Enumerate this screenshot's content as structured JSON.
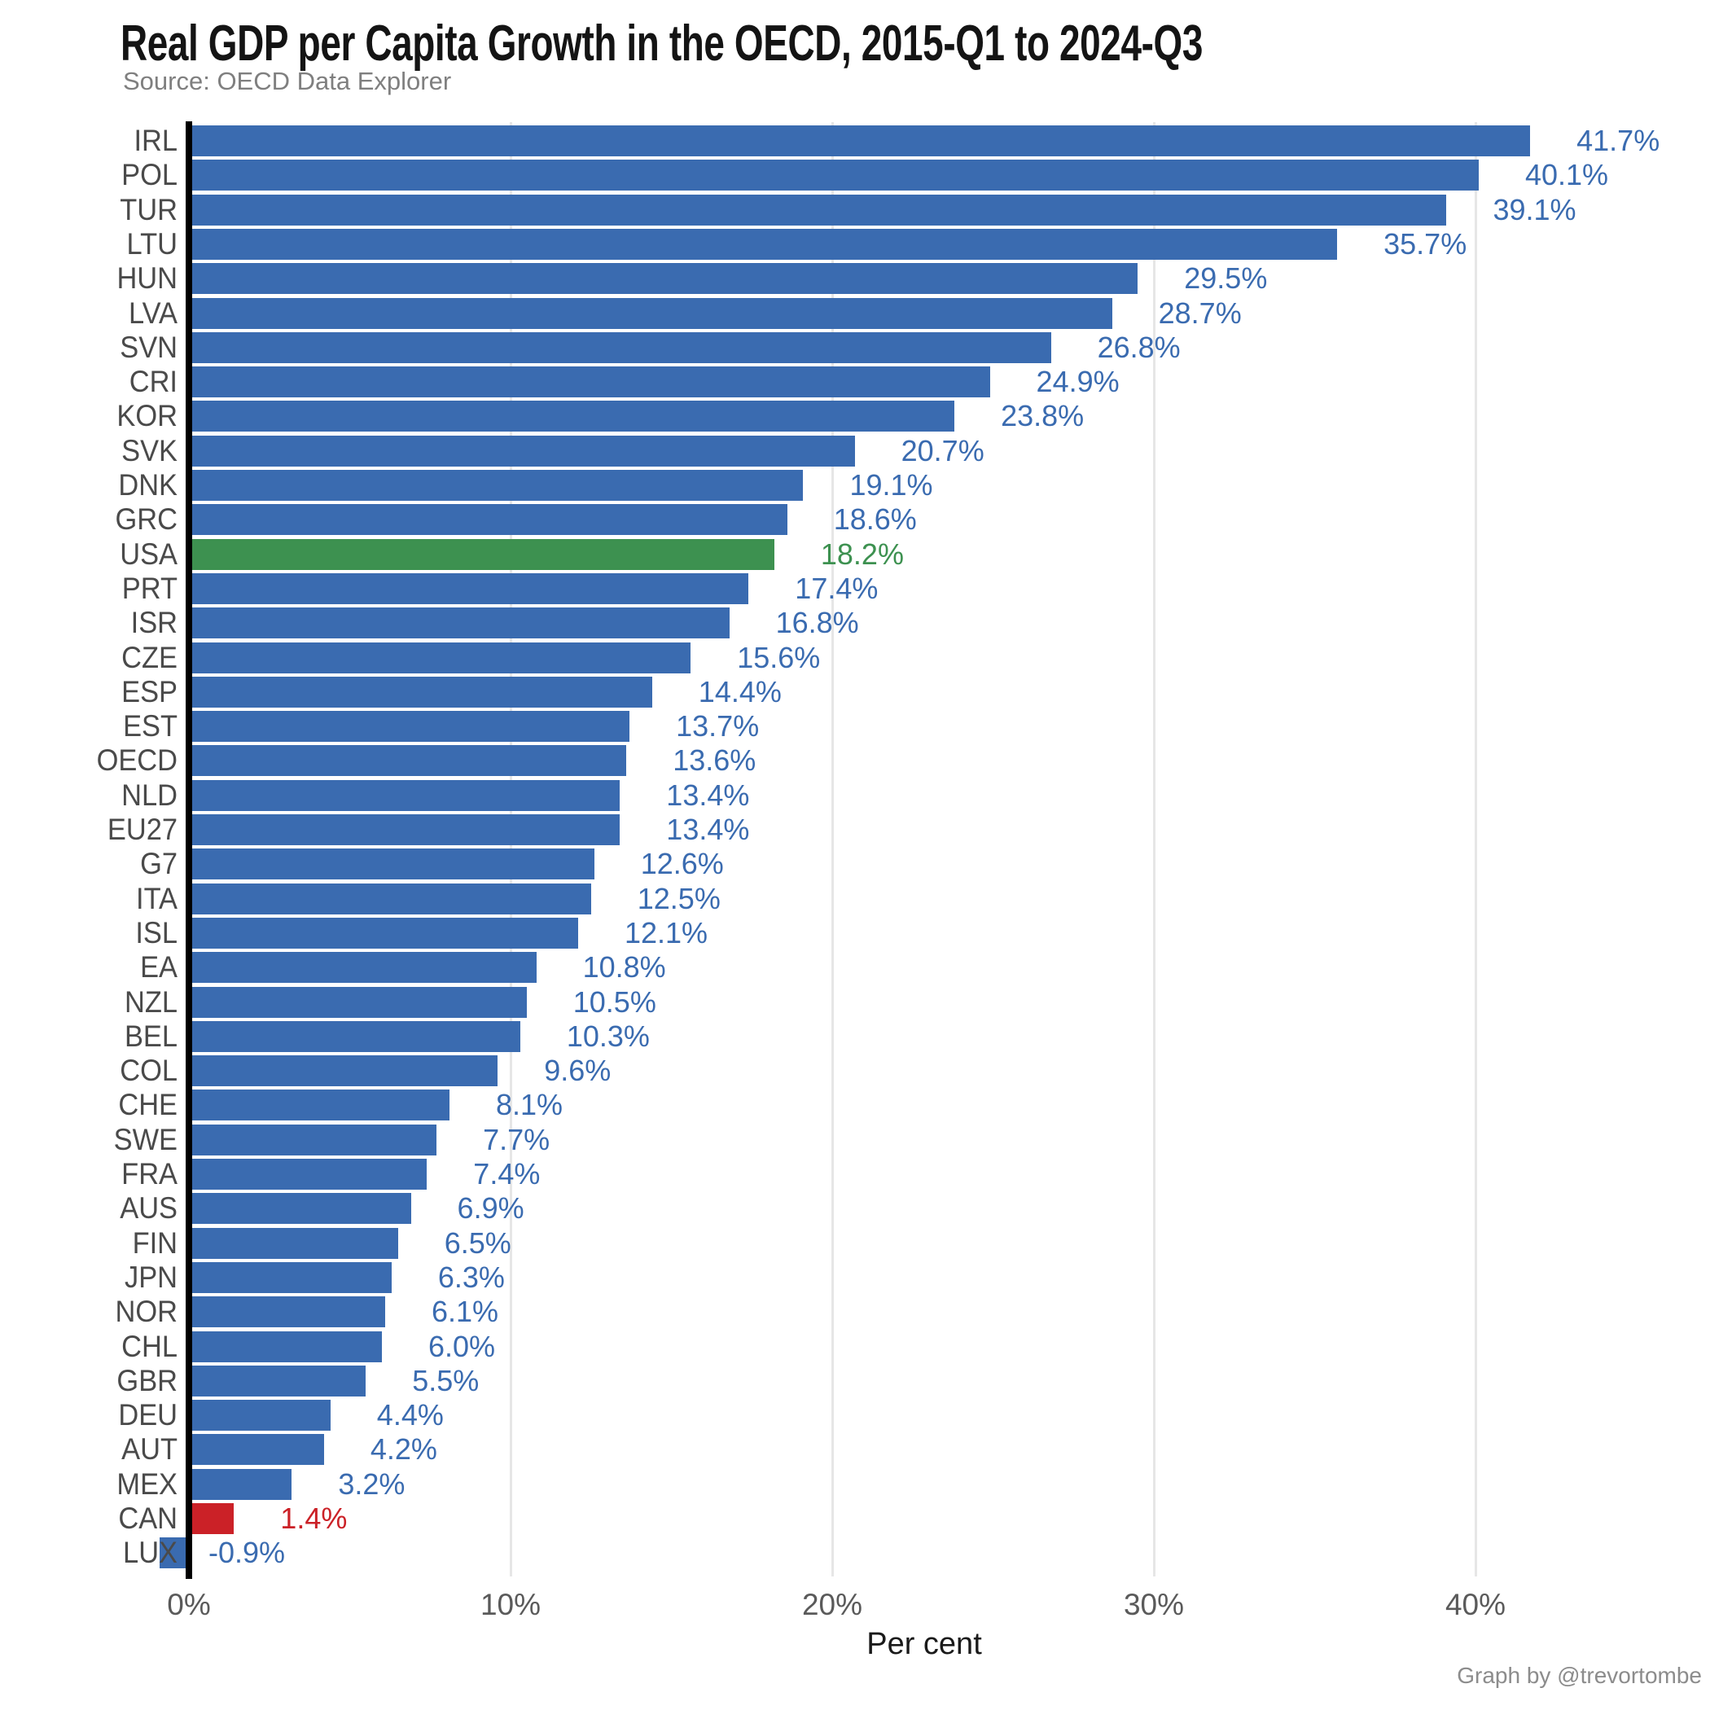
{
  "title": "Real GDP per Capita Growth in the OECD, 2015-Q1 to 2024-Q3",
  "subtitle": "Source: OECD Data Explorer",
  "footer": "Graph by @trevortombe",
  "colors": {
    "bar_default": "#3a6bb0",
    "bar_usa": "#3d9150",
    "bar_can": "#cb2127",
    "label_default": "#3a6bb0",
    "label_usa": "#3d9150",
    "label_can": "#cb2127",
    "axis_line": "#000000",
    "gridline": "#e6e6e6",
    "category_text": "#4a4a4a",
    "tick_text": "#5a5a5a"
  },
  "chart_data": {
    "type": "bar",
    "orientation": "horizontal",
    "title": "Real GDP per Capita Growth in the OECD, 2015-Q1 to 2024-Q3",
    "subtitle": "Source: OECD Data Explorer",
    "xlabel": "Per cent",
    "ylabel": "",
    "xlim": [
      -2,
      47
    ],
    "grid": "vertical-major",
    "x_ticks": [
      {
        "value": 0,
        "label": "0%"
      },
      {
        "value": 10,
        "label": "10%"
      },
      {
        "value": 20,
        "label": "20%"
      },
      {
        "value": 30,
        "label": "30%"
      },
      {
        "value": 40,
        "label": "40%"
      }
    ],
    "categories": [
      "IRL",
      "POL",
      "TUR",
      "LTU",
      "HUN",
      "LVA",
      "SVN",
      "CRI",
      "KOR",
      "SVK",
      "DNK",
      "GRC",
      "USA",
      "PRT",
      "ISR",
      "CZE",
      "ESP",
      "EST",
      "OECD",
      "NLD",
      "EU27",
      "G7",
      "ITA",
      "ISL",
      "EA",
      "NZL",
      "BEL",
      "COL",
      "CHE",
      "SWE",
      "FRA",
      "AUS",
      "FIN",
      "JPN",
      "NOR",
      "CHL",
      "GBR",
      "DEU",
      "AUT",
      "MEX",
      "CAN",
      "LUX"
    ],
    "values": [
      41.7,
      40.1,
      39.1,
      35.7,
      29.5,
      28.7,
      26.8,
      24.9,
      23.8,
      20.7,
      19.1,
      18.6,
      18.2,
      17.4,
      16.8,
      15.6,
      14.4,
      13.7,
      13.6,
      13.4,
      13.4,
      12.6,
      12.5,
      12.1,
      10.8,
      10.5,
      10.3,
      9.6,
      8.1,
      7.7,
      7.4,
      6.9,
      6.5,
      6.3,
      6.1,
      6.0,
      5.5,
      4.4,
      4.2,
      3.2,
      1.4,
      -0.9
    ],
    "data_labels": [
      "41.7%",
      "40.1%",
      "39.1%",
      "35.7%",
      "29.5%",
      "28.7%",
      "26.8%",
      "24.9%",
      "23.8%",
      "20.7%",
      "19.1%",
      "18.6%",
      "18.2%",
      "17.4%",
      "16.8%",
      "15.6%",
      "14.4%",
      "13.7%",
      "13.6%",
      "13.4%",
      "13.4%",
      "12.6%",
      "12.5%",
      "12.1%",
      "10.8%",
      "10.5%",
      "10.3%",
      "9.6%",
      "8.1%",
      "7.7%",
      "7.4%",
      "6.9%",
      "6.5%",
      "6.3%",
      "6.1%",
      "6.0%",
      "5.5%",
      "4.4%",
      "4.2%",
      "3.2%",
      "1.4%",
      "-0.9%"
    ],
    "highlights": {
      "USA": "usa",
      "CAN": "can"
    }
  }
}
